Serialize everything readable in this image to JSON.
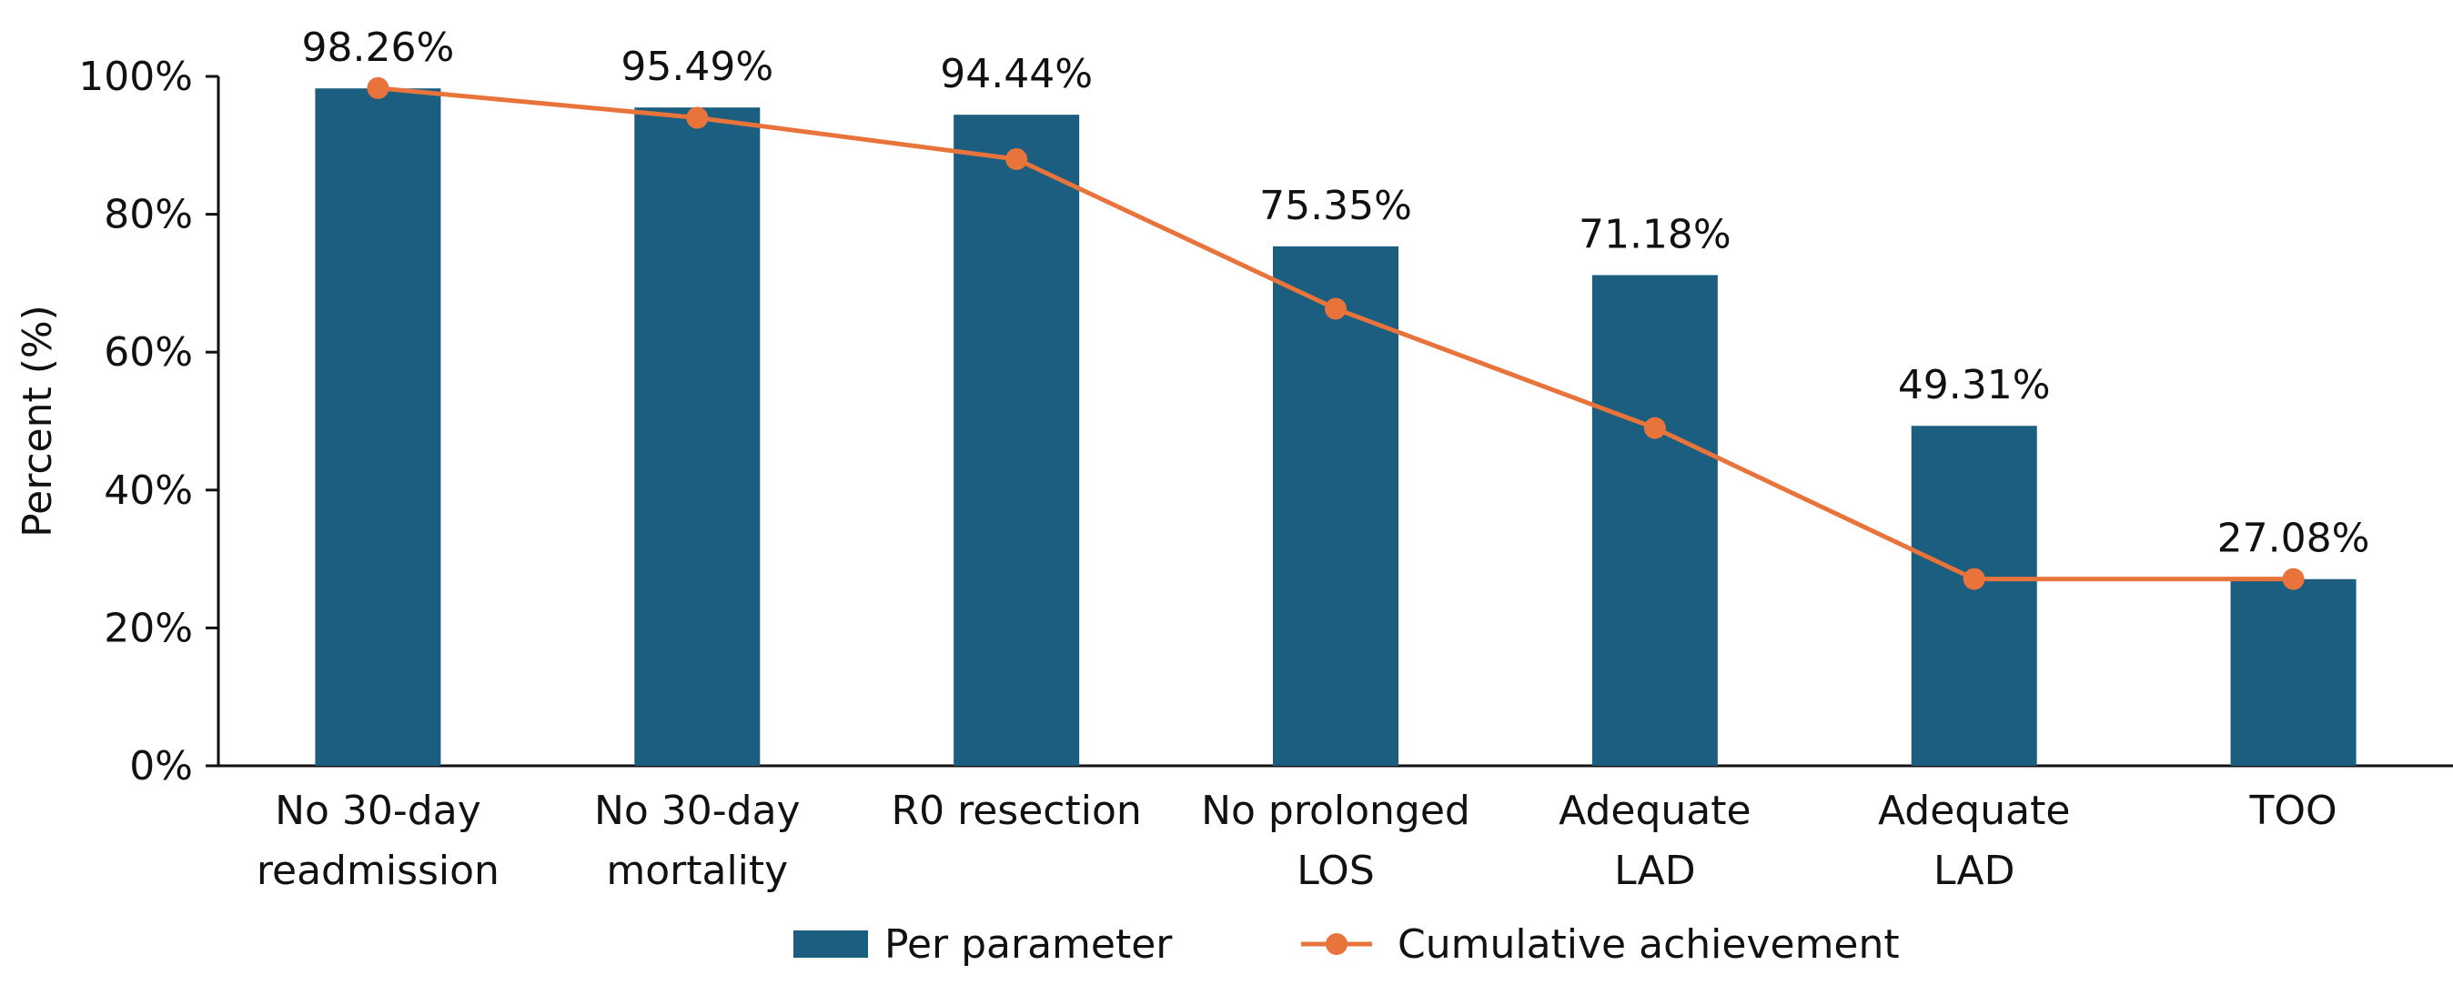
{
  "chart_data": {
    "type": "bar",
    "ylabel": "Percent (%)",
    "ylim": [
      0,
      100
    ],
    "yticks": [
      0,
      20,
      40,
      60,
      80,
      100
    ],
    "ytick_labels": [
      "0%",
      "20%",
      "40%",
      "60%",
      "80%",
      "100%"
    ],
    "categories": [
      [
        "No 30-day",
        "readmission"
      ],
      [
        "No 30-day",
        "mortality"
      ],
      [
        "R0 resection"
      ],
      [
        "No prolonged",
        "LOS"
      ],
      [
        "Adequate",
        "LAD"
      ],
      [
        "Adequate",
        "LAD"
      ],
      [
        "TOO"
      ]
    ],
    "series": [
      {
        "name": "Per parameter",
        "kind": "bar",
        "color": "#1b5e80",
        "values": [
          98.26,
          95.49,
          94.44,
          75.35,
          71.18,
          49.31,
          27.08
        ],
        "labels": [
          "98.26%",
          "95.49%",
          "94.44%",
          "75.35%",
          "71.18%",
          "49.31%",
          "27.08%"
        ]
      },
      {
        "name": "Cumulative achievement",
        "kind": "line",
        "color": "#e8743b",
        "values": [
          98.3,
          94.0,
          88.0,
          66.3,
          49.0,
          27.1,
          27.1
        ]
      }
    ],
    "legend_position": "bottom",
    "grid": false
  }
}
